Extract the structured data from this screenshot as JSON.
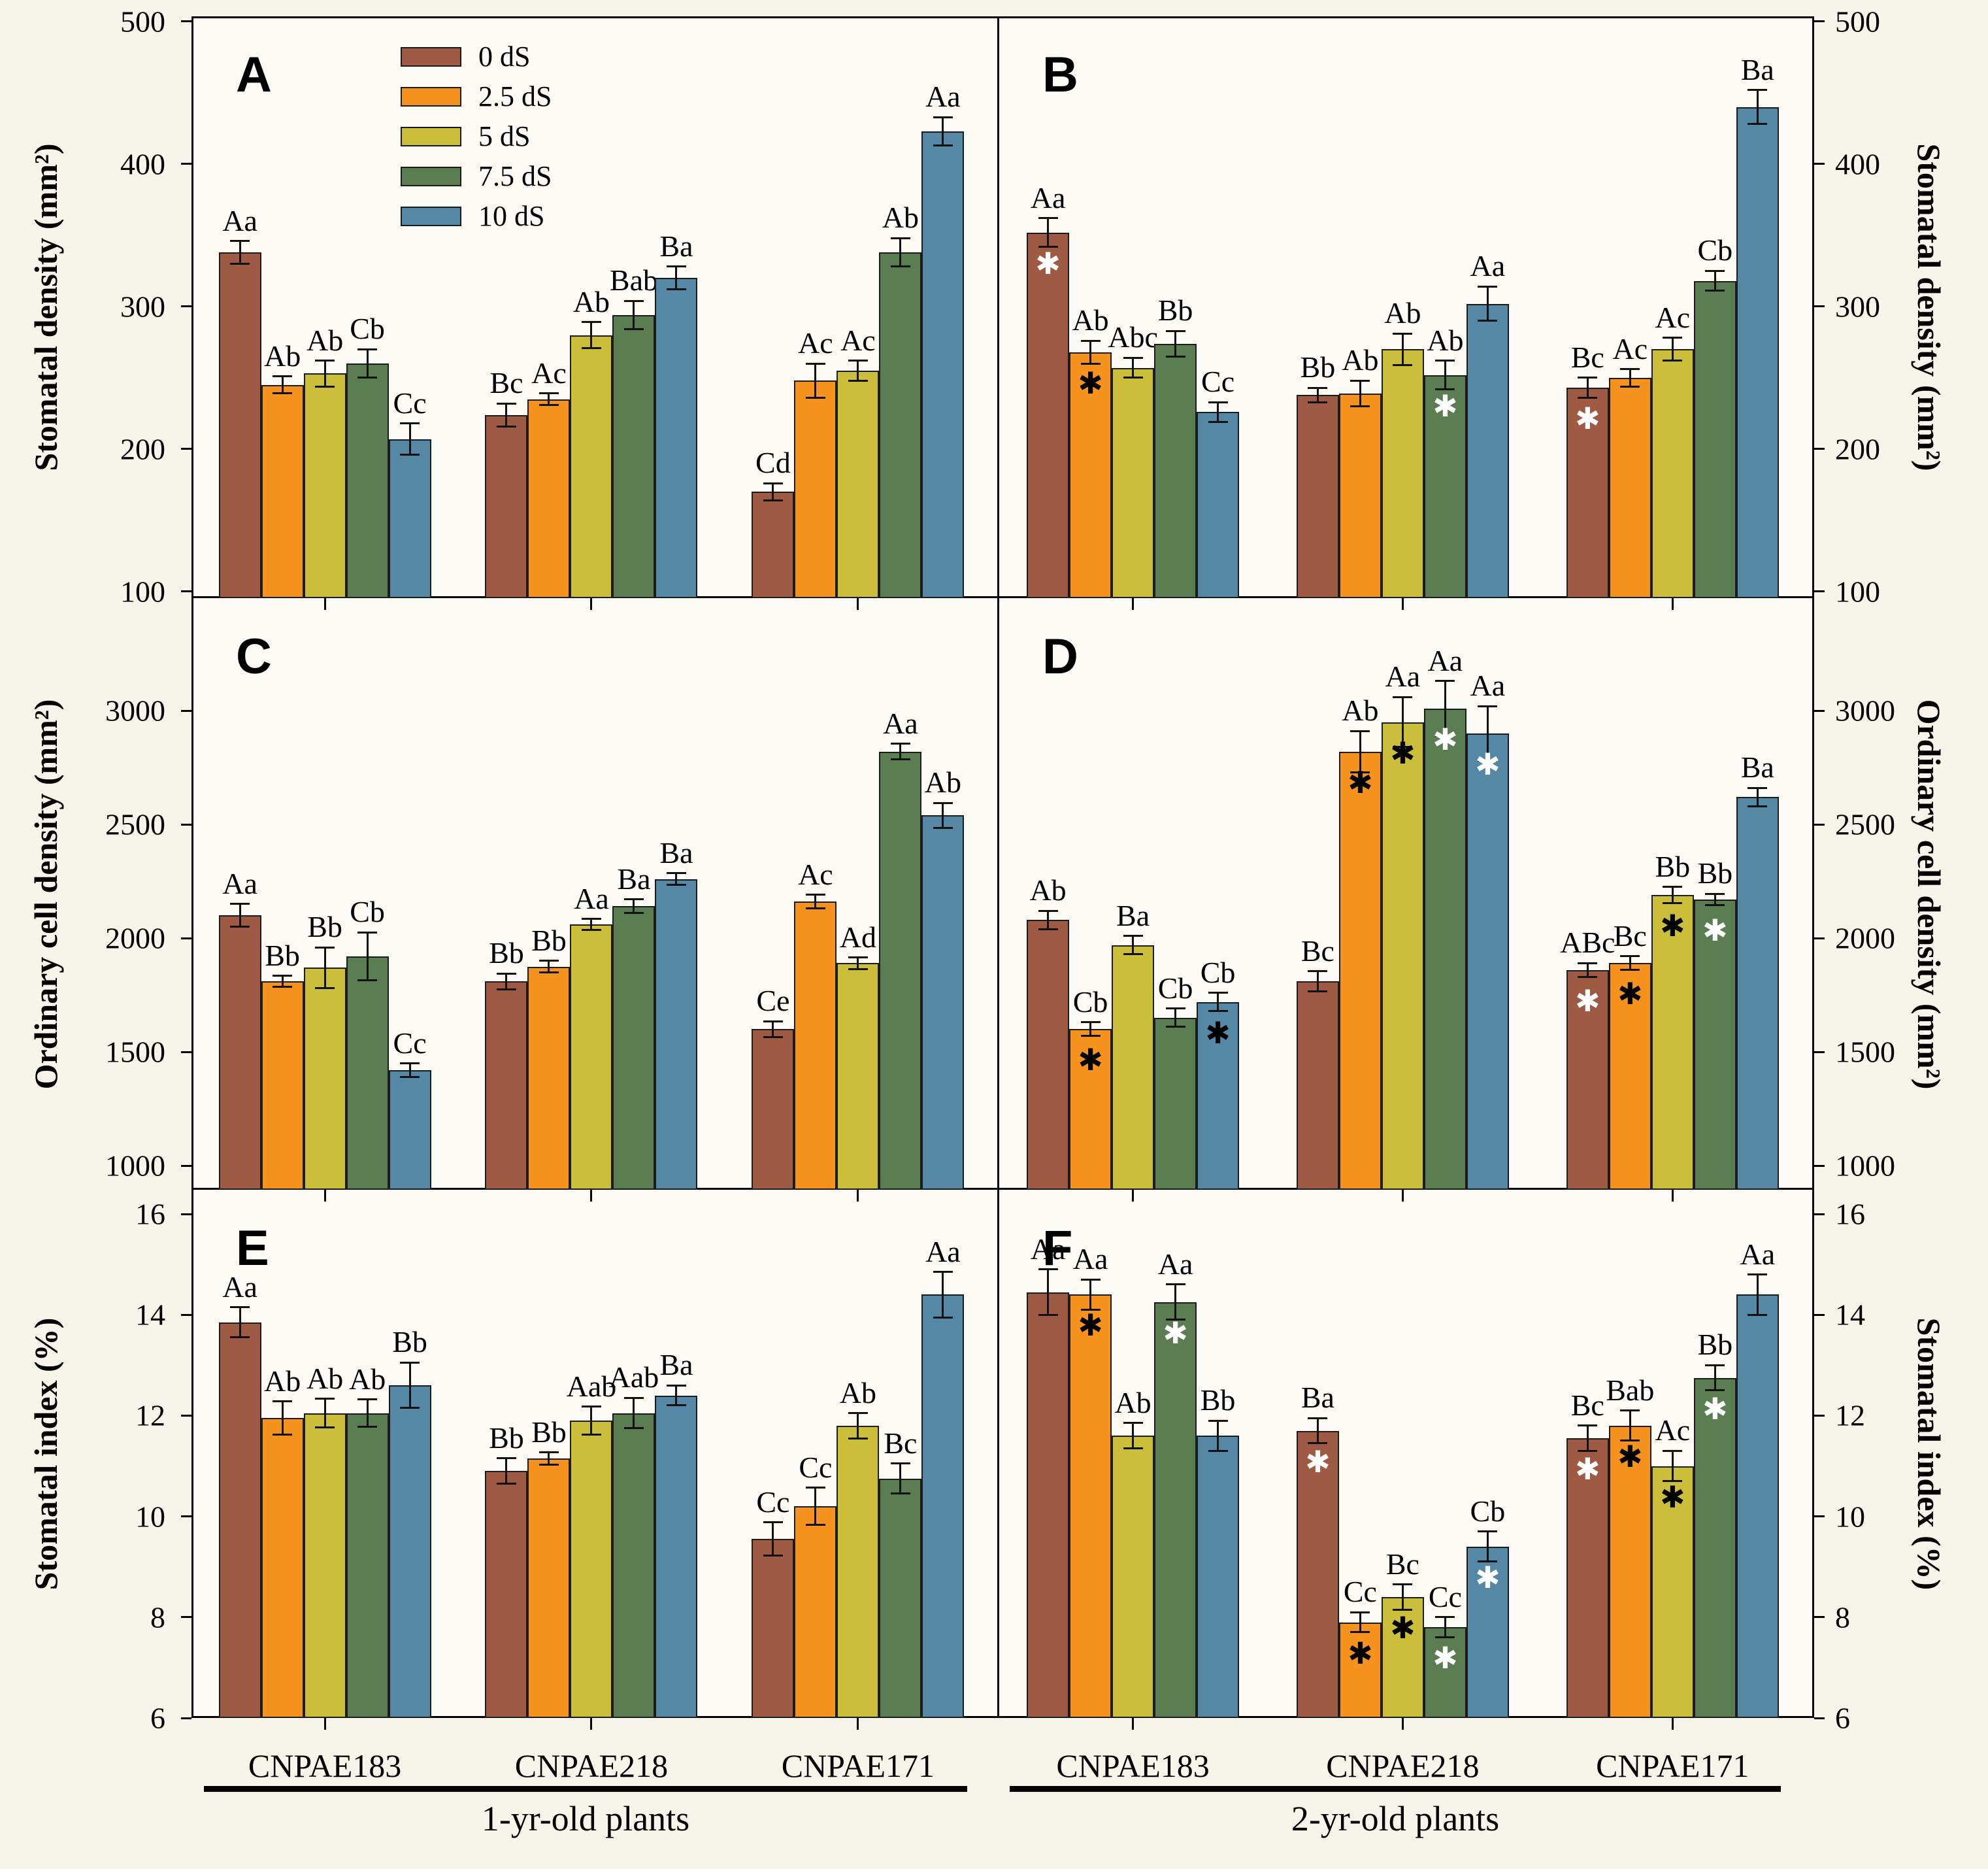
{
  "legend": {
    "items": [
      {
        "label": "0 dS",
        "color": "#9E5A43"
      },
      {
        "label": "2.5 dS",
        "color": "#F6921E"
      },
      {
        "label": "5 dS",
        "color": "#CBBE3B"
      },
      {
        "label": "7.5 dS",
        "color": "#5A7D52"
      },
      {
        "label": "10 dS",
        "color": "#5488A4"
      }
    ]
  },
  "axes": {
    "rows": [
      {
        "label": "Stomatal density (mm²)",
        "ticks": [
          500,
          400,
          300,
          200,
          100
        ],
        "ylim": [
          100,
          500
        ]
      },
      {
        "label": "Ordinary cell density (mm²)",
        "ticks": [
          3000,
          2500,
          2000,
          1500,
          1000
        ],
        "ylim": [
          1000,
          3000
        ]
      },
      {
        "label": "Stomatal index (%)",
        "ticks": [
          16,
          14,
          12,
          10,
          8,
          6
        ],
        "ylim": [
          6,
          16
        ]
      }
    ]
  },
  "groups": [
    "CNPAE183",
    "CNPAE218",
    "CNPAE171"
  ],
  "age_groups": [
    "1-yr-old plants",
    "2-yr-old plants"
  ],
  "significance_marker": "✱",
  "chart_data": [
    {
      "panel": "A",
      "type": "bar",
      "row": 0,
      "col": 0,
      "age_group": "1-yr-old plants",
      "y_axis": "Stomatal density (mm²)",
      "ylim": [
        100,
        500
      ],
      "categories": [
        "CNPAE183",
        "CNPAE218",
        "CNPAE171"
      ],
      "series": [
        {
          "name": "0 dS",
          "values": [
            338,
            224,
            170
          ],
          "errors": [
            8,
            8,
            6
          ],
          "labels": [
            "Aa",
            "Bc",
            "Cd"
          ],
          "stars": [
            null,
            null,
            null
          ]
        },
        {
          "name": "2.5 dS",
          "values": [
            245,
            235,
            248
          ],
          "errors": [
            6,
            4,
            12
          ],
          "labels": [
            "Ab",
            "Ac",
            "Ac"
          ],
          "stars": [
            null,
            null,
            null
          ]
        },
        {
          "name": "5 dS",
          "values": [
            253,
            280,
            255
          ],
          "errors": [
            9,
            9,
            7
          ],
          "labels": [
            "Ab",
            "Ab",
            "Ac"
          ],
          "stars": [
            null,
            null,
            null
          ]
        },
        {
          "name": "7.5 dS",
          "values": [
            260,
            294,
            338
          ],
          "errors": [
            10,
            10,
            10
          ],
          "labels": [
            "Cb",
            "Bab",
            "Ab"
          ],
          "stars": [
            null,
            null,
            null
          ]
        },
        {
          "name": "10 dS",
          "values": [
            207,
            320,
            423
          ],
          "errors": [
            11,
            8,
            10
          ],
          "labels": [
            "Cc",
            "Ba",
            "Aa"
          ],
          "stars": [
            null,
            null,
            null
          ]
        }
      ]
    },
    {
      "panel": "B",
      "type": "bar",
      "row": 0,
      "col": 1,
      "age_group": "2-yr-old plants",
      "y_axis": "Stomatal density (mm²)",
      "ylim": [
        100,
        500
      ],
      "categories": [
        "CNPAE183",
        "CNPAE218",
        "CNPAE171"
      ],
      "series": [
        {
          "name": "0 dS",
          "values": [
            352,
            238,
            243
          ],
          "errors": [
            10,
            5,
            7
          ],
          "labels": [
            "Aa",
            "Bb",
            "Bc"
          ],
          "stars": [
            "white",
            null,
            "white"
          ]
        },
        {
          "name": "2.5 dS",
          "values": [
            268,
            239,
            250
          ],
          "errors": [
            8,
            9,
            6
          ],
          "labels": [
            "Ab",
            "Ab",
            "Ac"
          ],
          "stars": [
            "black",
            null,
            null
          ]
        },
        {
          "name": "5 dS",
          "values": [
            257,
            270,
            270
          ],
          "errors": [
            7,
            11,
            8
          ],
          "labels": [
            "Abc",
            "Ab",
            "Ac"
          ],
          "stars": [
            null,
            null,
            null
          ]
        },
        {
          "name": "7.5 dS",
          "values": [
            274,
            252,
            318
          ],
          "errors": [
            9,
            10,
            7
          ],
          "labels": [
            "Bb",
            "Ab",
            "Cb"
          ],
          "stars": [
            null,
            "white",
            null
          ]
        },
        {
          "name": "10 dS",
          "values": [
            226,
            302,
            440
          ],
          "errors": [
            7,
            12,
            12
          ],
          "labels": [
            "Cc",
            "Aa",
            "Ba"
          ],
          "stars": [
            null,
            null,
            null
          ]
        }
      ]
    },
    {
      "panel": "C",
      "type": "bar",
      "row": 1,
      "col": 0,
      "age_group": "1-yr-old plants",
      "y_axis": "Ordinary cell density (mm²)",
      "ylim": [
        1000,
        3000
      ],
      "categories": [
        "CNPAE183",
        "CNPAE218",
        "CNPAE171"
      ],
      "series": [
        {
          "name": "0 dS",
          "values": [
            2100,
            1810,
            1600
          ],
          "errors": [
            50,
            35,
            35
          ],
          "labels": [
            "Aa",
            "Bb",
            "Ce"
          ],
          "stars": [
            null,
            null,
            null
          ]
        },
        {
          "name": "2.5 dS",
          "values": [
            1810,
            1875,
            2160
          ],
          "errors": [
            25,
            25,
            30
          ],
          "labels": [
            "Bb",
            "Bb",
            "Ac"
          ],
          "stars": [
            null,
            null,
            null
          ]
        },
        {
          "name": "5 dS",
          "values": [
            1870,
            2060,
            1890
          ],
          "errors": [
            90,
            25,
            25
          ],
          "labels": [
            "Bb",
            "Aa",
            "Ad"
          ],
          "stars": [
            null,
            null,
            null
          ]
        },
        {
          "name": "7.5 dS",
          "values": [
            1920,
            2140,
            2820
          ],
          "errors": [
            105,
            30,
            35
          ],
          "labels": [
            "Cb",
            "Ba",
            "Aa"
          ],
          "stars": [
            null,
            null,
            null
          ]
        },
        {
          "name": "10 dS",
          "values": [
            1420,
            2260,
            2540
          ],
          "errors": [
            30,
            25,
            55
          ],
          "labels": [
            "Cc",
            "Ba",
            "Ab"
          ],
          "stars": [
            null,
            null,
            null
          ]
        }
      ]
    },
    {
      "panel": "D",
      "type": "bar",
      "row": 1,
      "col": 1,
      "age_group": "2-yr-old plants",
      "y_axis": "Ordinary cell density (mm²)",
      "ylim": [
        1000,
        3000
      ],
      "categories": [
        "CNPAE183",
        "CNPAE218",
        "CNPAE171"
      ],
      "series": [
        {
          "name": "0 dS",
          "values": [
            2080,
            1810,
            1860
          ],
          "errors": [
            40,
            45,
            30
          ],
          "labels": [
            "Ab",
            "Bc",
            "ABc"
          ],
          "stars": [
            null,
            null,
            "white"
          ]
        },
        {
          "name": "2.5 dS",
          "values": [
            1600,
            2820,
            1890
          ],
          "errors": [
            30,
            90,
            30
          ],
          "labels": [
            "Cb",
            "Ab",
            "Bc"
          ],
          "stars": [
            "black",
            "black",
            "black"
          ]
        },
        {
          "name": "5 dS",
          "values": [
            1970,
            2950,
            2190
          ],
          "errors": [
            40,
            110,
            35
          ],
          "labels": [
            "Ba",
            "Aa",
            "Bb"
          ],
          "stars": [
            null,
            "black",
            "black"
          ]
        },
        {
          "name": "7.5 dS",
          "values": [
            1650,
            3010,
            2170
          ],
          "errors": [
            40,
            120,
            25
          ],
          "labels": [
            "Cb",
            "Aa",
            "Bb"
          ],
          "stars": [
            null,
            "white",
            "white"
          ]
        },
        {
          "name": "10 dS",
          "values": [
            1720,
            2900,
            2620
          ],
          "errors": [
            40,
            120,
            40
          ],
          "labels": [
            "Cb",
            "Aa",
            "Ba"
          ],
          "stars": [
            "black",
            "white",
            null
          ]
        }
      ]
    },
    {
      "panel": "E",
      "type": "bar",
      "row": 2,
      "col": 0,
      "age_group": "1-yr-old plants",
      "y_axis": "Stomatal index (%)",
      "ylim": [
        6,
        16
      ],
      "categories": [
        "CNPAE183",
        "CNPAE218",
        "CNPAE171"
      ],
      "series": [
        {
          "name": "0 dS",
          "values": [
            13.85,
            10.9,
            9.55
          ],
          "errors": [
            0.3,
            0.25,
            0.33
          ],
          "labels": [
            "Aa",
            "Bb",
            "Cc"
          ],
          "stars": [
            null,
            null,
            null
          ]
        },
        {
          "name": "2.5 dS",
          "values": [
            11.95,
            11.15,
            10.2
          ],
          "errors": [
            0.33,
            0.12,
            0.37
          ],
          "labels": [
            "Ab",
            "Bb",
            "Cc"
          ],
          "stars": [
            null,
            null,
            null
          ]
        },
        {
          "name": "5 dS",
          "values": [
            12.05,
            11.9,
            11.8
          ],
          "errors": [
            0.28,
            0.28,
            0.25
          ],
          "labels": [
            "Ab",
            "Aab",
            "Ab"
          ],
          "stars": [
            null,
            null,
            null
          ]
        },
        {
          "name": "7.5 dS",
          "values": [
            12.05,
            12.05,
            10.75
          ],
          "errors": [
            0.27,
            0.3,
            0.3
          ],
          "labels": [
            "Ab",
            "Aab",
            "Bc"
          ],
          "stars": [
            null,
            null,
            null
          ]
        },
        {
          "name": "10 dS",
          "values": [
            12.6,
            12.4,
            14.4
          ],
          "errors": [
            0.45,
            0.2,
            0.45
          ],
          "labels": [
            "Bb",
            "Ba",
            "Aa"
          ],
          "stars": [
            null,
            null,
            null
          ]
        }
      ]
    },
    {
      "panel": "F",
      "type": "bar",
      "row": 2,
      "col": 1,
      "age_group": "2-yr-old plants",
      "y_axis": "Stomatal index (%)",
      "ylim": [
        6,
        16
      ],
      "categories": [
        "CNPAE183",
        "CNPAE218",
        "CNPAE171"
      ],
      "series": [
        {
          "name": "0 dS",
          "values": [
            14.45,
            11.7,
            11.55
          ],
          "errors": [
            0.45,
            0.25,
            0.25
          ],
          "labels": [
            "Aa",
            "Ba",
            "Bc"
          ],
          "stars": [
            null,
            "white",
            "white"
          ]
        },
        {
          "name": "2.5 dS",
          "values": [
            14.4,
            7.9,
            11.8
          ],
          "errors": [
            0.3,
            0.2,
            0.3
          ],
          "labels": [
            "Aa",
            "Cc",
            "Bab"
          ],
          "stars": [
            "black",
            "black",
            "black"
          ]
        },
        {
          "name": "5 dS",
          "values": [
            11.6,
            8.4,
            11.0
          ],
          "errors": [
            0.25,
            0.25,
            0.3
          ],
          "labels": [
            "Ab",
            "Bc",
            "Ac"
          ],
          "stars": [
            null,
            "black",
            "black"
          ]
        },
        {
          "name": "7.5 dS",
          "values": [
            14.25,
            7.8,
            12.75
          ],
          "errors": [
            0.35,
            0.2,
            0.25
          ],
          "labels": [
            "Aa",
            "Cc",
            "Bb"
          ],
          "stars": [
            "white",
            "white",
            "white"
          ]
        },
        {
          "name": "10 dS",
          "values": [
            11.6,
            9.4,
            14.4
          ],
          "errors": [
            0.3,
            0.3,
            0.4
          ],
          "labels": [
            "Bb",
            "Cb",
            "Aa"
          ],
          "stars": [
            null,
            "white",
            null
          ]
        }
      ]
    }
  ]
}
